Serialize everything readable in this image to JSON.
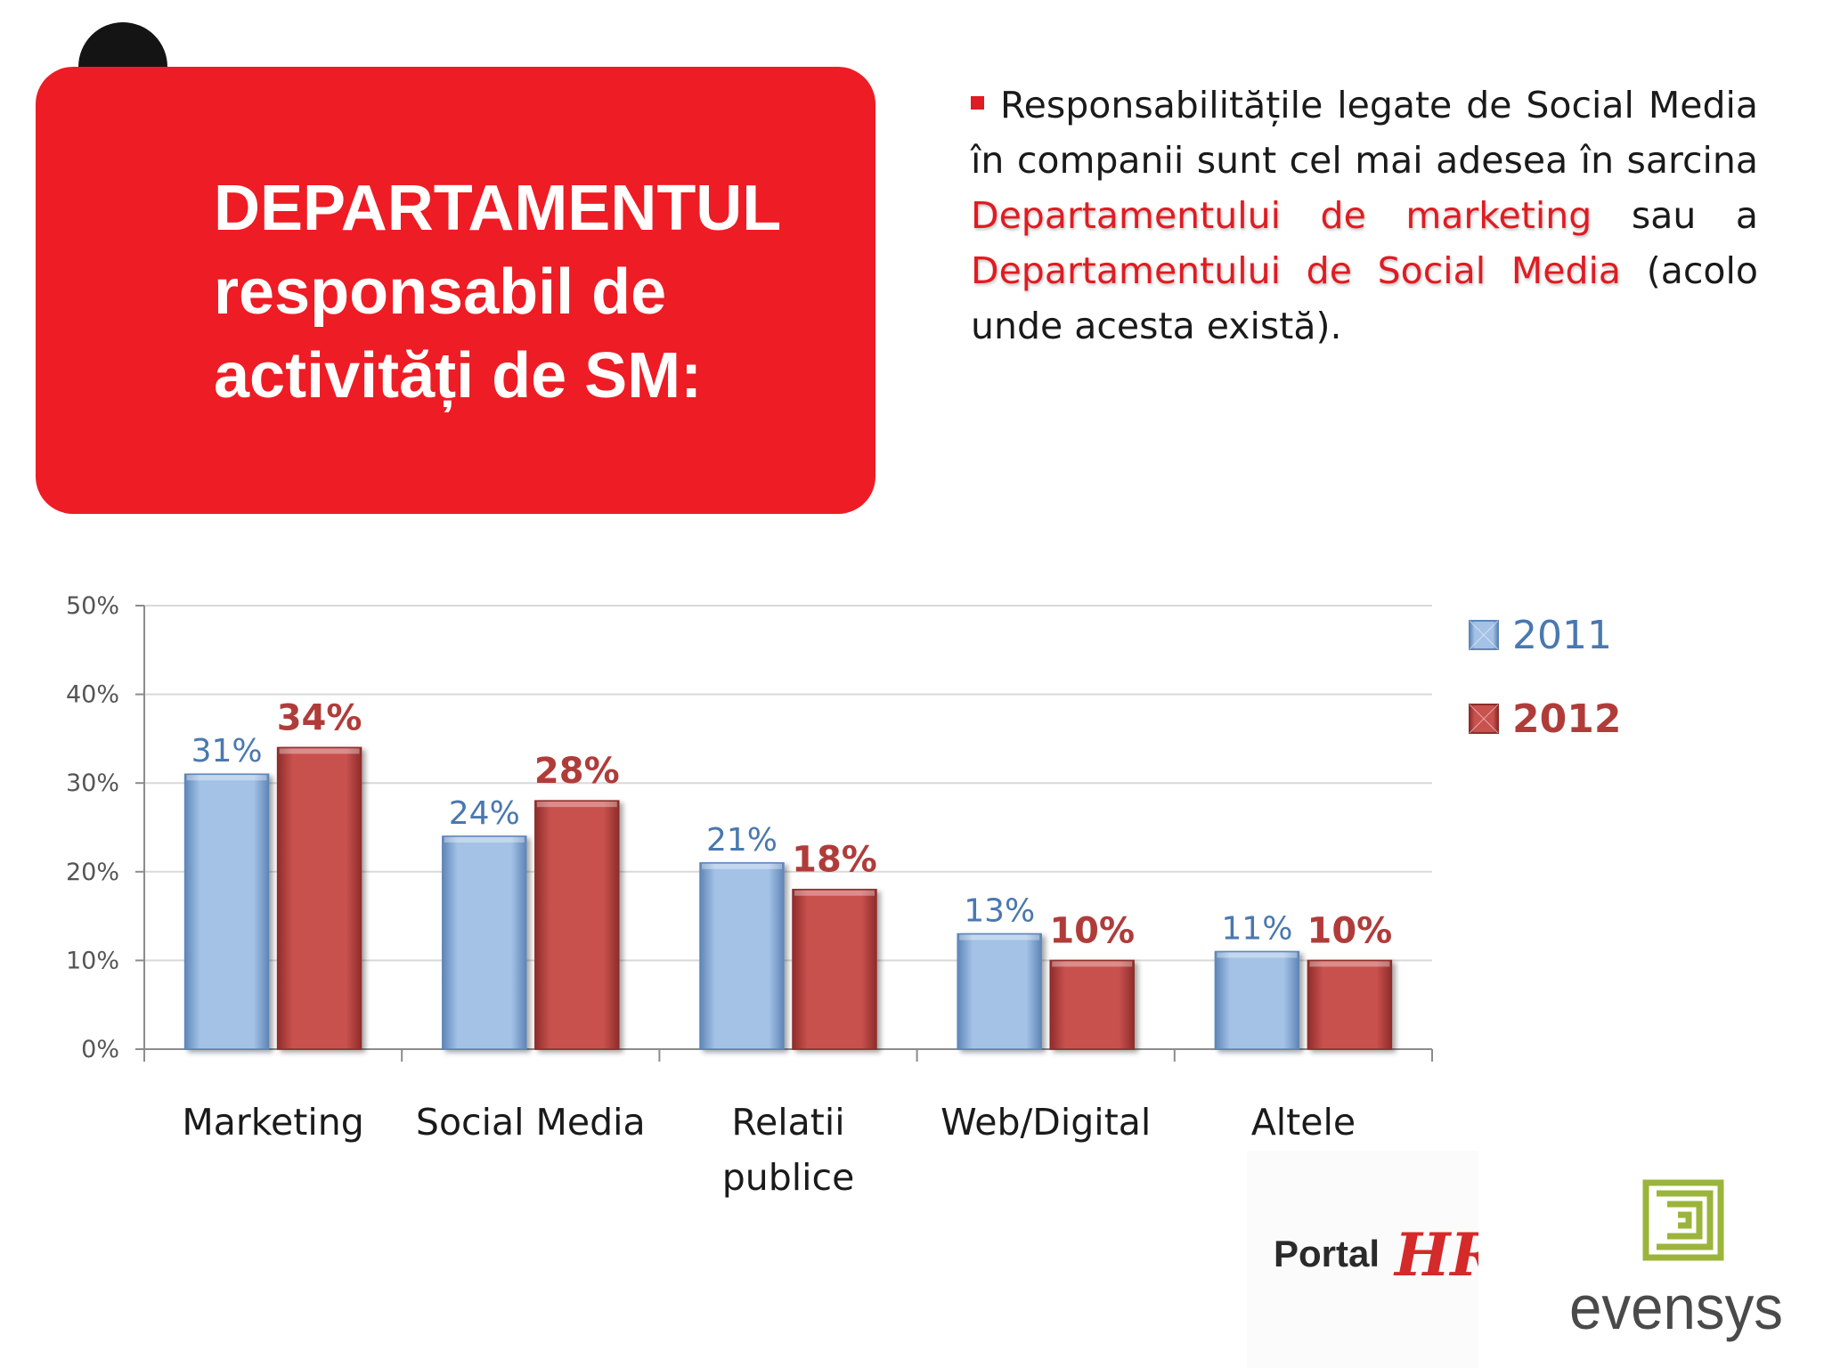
{
  "header": {
    "title_line1": "DEPARTAMENTUL",
    "title_line2": "responsabil de",
    "title_line3": "activități de SM:",
    "nav_icon": "arrow-forward-icon"
  },
  "intro": {
    "text_1": "Responsabilitățile legate de Social Media în companii sunt cel mai adesea în sarcina",
    "highlight_1": "Departamentului de marketing",
    "text_2": "sau a",
    "highlight_2": "Departamentului de Social Media",
    "text_3": "(acolo unde acesta există)."
  },
  "chart_data": {
    "type": "bar",
    "categories": [
      "Marketing",
      "Social Media",
      "Relatii publice",
      "Web/Digital",
      "Altele"
    ],
    "series": [
      {
        "name": "2011",
        "values": [
          31,
          24,
          21,
          13,
          11
        ],
        "color": "#9bbbe0",
        "label_color": "#4a78b0"
      },
      {
        "name": "2012",
        "values": [
          34,
          28,
          18,
          10,
          10
        ],
        "color": "#c0504d",
        "label_color": "#b03c3a"
      }
    ],
    "ylim": [
      0,
      50
    ],
    "yticks": [
      "0%",
      "10%",
      "20%",
      "30%",
      "40%",
      "50%"
    ],
    "value_suffix": "%",
    "grid": true,
    "legend_position": "right",
    "title": "",
    "xlabel": "",
    "ylabel": ""
  },
  "logos": {
    "portal_text": "Portal",
    "portal_mark": "HR",
    "evensys_text": "evensys"
  }
}
